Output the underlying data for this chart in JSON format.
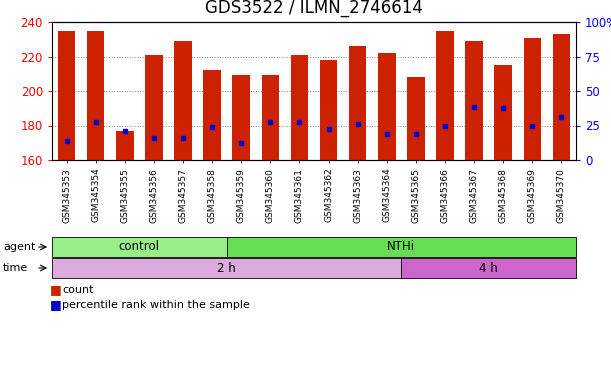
{
  "title": "GDS3522 / ILMN_2746614",
  "samples": [
    "GSM345353",
    "GSM345354",
    "GSM345355",
    "GSM345356",
    "GSM345357",
    "GSM345358",
    "GSM345359",
    "GSM345360",
    "GSM345361",
    "GSM345362",
    "GSM345363",
    "GSM345364",
    "GSM345365",
    "GSM345366",
    "GSM345367",
    "GSM345368",
    "GSM345369",
    "GSM345370"
  ],
  "bar_tops": [
    235,
    235,
    177,
    221,
    229,
    212,
    209,
    209,
    221,
    218,
    226,
    222,
    208,
    235,
    229,
    215,
    231,
    233
  ],
  "bar_bottoms": [
    160,
    160,
    160,
    160,
    160,
    160,
    160,
    160,
    160,
    160,
    160,
    160,
    160,
    160,
    160,
    160,
    160,
    160
  ],
  "blue_positions": [
    171,
    182,
    177,
    173,
    173,
    179,
    170,
    182,
    182,
    178,
    181,
    175,
    175,
    180,
    191,
    190,
    180,
    185
  ],
  "ylim_left": [
    160,
    240
  ],
  "ylim_right": [
    0,
    100
  ],
  "yticks_left": [
    160,
    180,
    200,
    220,
    240
  ],
  "yticks_right": [
    0,
    25,
    50,
    75,
    100
  ],
  "bar_color": "#CC2200",
  "blue_color": "#0000CC",
  "agent_groups": [
    {
      "label": "control",
      "start": 0,
      "end": 6,
      "color": "#99EE88"
    },
    {
      "label": "NTHi",
      "start": 6,
      "end": 18,
      "color": "#66DD55"
    }
  ],
  "time_groups": [
    {
      "label": "2 h",
      "start": 0,
      "end": 12,
      "color": "#DDAADD"
    },
    {
      "label": "4 h",
      "start": 12,
      "end": 18,
      "color": "#CC66CC"
    }
  ],
  "agent_label": "agent",
  "time_label": "time",
  "title_fontsize": 12,
  "tick_fontsize": 6.5,
  "bar_width": 0.6,
  "legend_count_color": "#CC2200",
  "legend_pct_color": "#0000CC"
}
